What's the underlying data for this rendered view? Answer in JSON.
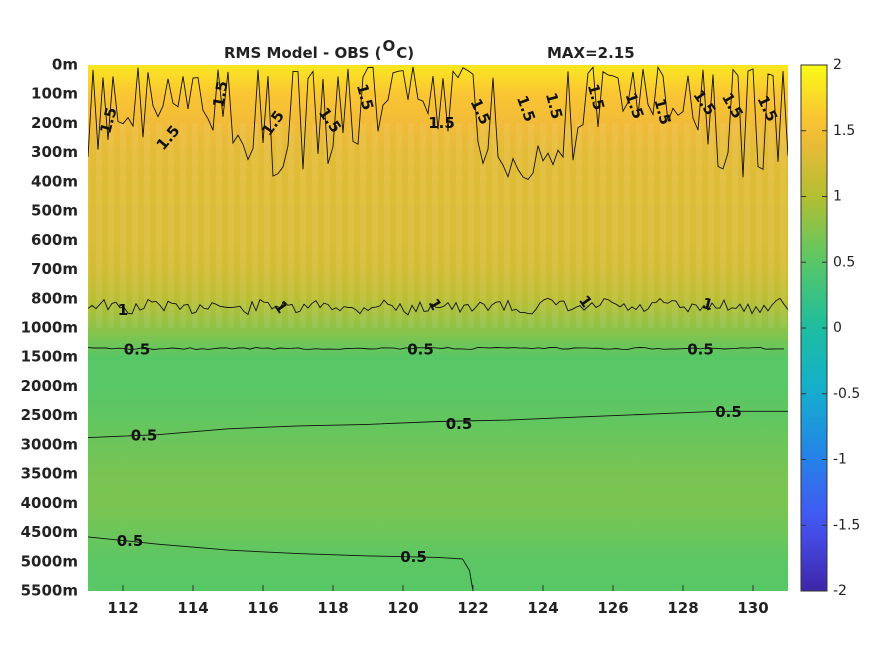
{
  "chart_data": {
    "type": "heatmap",
    "title": "RMS Model - OBS (",
    "title_unit_sup": "O",
    "title_unit_tail": "C)",
    "max_label": "MAX=2.15",
    "x_ticks": [
      {
        "value": 112,
        "label": "112"
      },
      {
        "value": 114,
        "label": "114"
      },
      {
        "value": 116,
        "label": "116"
      },
      {
        "value": 118,
        "label": "118"
      },
      {
        "value": 120,
        "label": "120"
      },
      {
        "value": 122,
        "label": "122"
      },
      {
        "value": 124,
        "label": "124"
      },
      {
        "value": 126,
        "label": "126"
      },
      {
        "value": 128,
        "label": "128"
      },
      {
        "value": 130,
        "label": "130"
      }
    ],
    "xlim": [
      111,
      131
    ],
    "y_levels": [
      "0m",
      "100m",
      "200m",
      "300m",
      "400m",
      "500m",
      "600m",
      "700m",
      "800m",
      "1000m",
      "1500m",
      "2000m",
      "2500m",
      "3000m",
      "3500m",
      "4000m",
      "4500m",
      "5000m",
      "5500m"
    ],
    "depth_profile": [
      {
        "level": "0m",
        "value": 1.85
      },
      {
        "level": "100m",
        "value": 1.6
      },
      {
        "level": "200m",
        "value": 1.45
      },
      {
        "level": "300m",
        "value": 1.35
      },
      {
        "level": "400m",
        "value": 1.32
      },
      {
        "level": "500m",
        "value": 1.3
      },
      {
        "level": "600m",
        "value": 1.28
      },
      {
        "level": "700m",
        "value": 1.22
      },
      {
        "level": "800m",
        "value": 1.05
      },
      {
        "level": "1000m",
        "value": 0.8
      },
      {
        "level": "1500m",
        "value": 0.5
      },
      {
        "level": "2000m",
        "value": 0.5
      },
      {
        "level": "2500m",
        "value": 0.55
      },
      {
        "level": "3000m",
        "value": 0.62
      },
      {
        "level": "3500m",
        "value": 0.68
      },
      {
        "level": "4000m",
        "value": 0.7
      },
      {
        "level": "4500m",
        "value": 0.62
      },
      {
        "level": "5000m",
        "value": 0.52
      },
      {
        "level": "5500m",
        "value": 0.5
      }
    ],
    "contour_labels": [
      {
        "text": "1.5",
        "x": 111.6,
        "level": 1.9,
        "rotate": -75
      },
      {
        "text": "1.5",
        "x": 113.3,
        "level": 2.5,
        "rotate": -50
      },
      {
        "text": "1.5",
        "x": 114.8,
        "level": 1.0,
        "rotate": -80
      },
      {
        "text": "1.5",
        "x": 116.3,
        "level": 2.0,
        "rotate": -55
      },
      {
        "text": "1.5",
        "x": 117.9,
        "level": 1.9,
        "rotate": 55
      },
      {
        "text": "1.5",
        "x": 118.9,
        "level": 1.1,
        "rotate": 75
      },
      {
        "text": "1.5",
        "x": 121.1,
        "level": 2.0,
        "rotate": 0
      },
      {
        "text": "1.5",
        "x": 122.2,
        "level": 1.6,
        "rotate": 65
      },
      {
        "text": "1.5",
        "x": 123.5,
        "level": 1.5,
        "rotate": 70
      },
      {
        "text": "1.5",
        "x": 124.3,
        "level": 1.4,
        "rotate": 75
      },
      {
        "text": "1.5",
        "x": 125.5,
        "level": 1.1,
        "rotate": 75
      },
      {
        "text": "1.5",
        "x": 126.6,
        "level": 1.4,
        "rotate": 70
      },
      {
        "text": "1.5",
        "x": 127.4,
        "level": 1.6,
        "rotate": 75
      },
      {
        "text": "1.5",
        "x": 128.6,
        "level": 1.3,
        "rotate": 55
      },
      {
        "text": "1.5",
        "x": 129.4,
        "level": 1.4,
        "rotate": 60
      },
      {
        "text": "1.5",
        "x": 130.4,
        "level": 1.5,
        "rotate": 65
      },
      {
        "text": "1",
        "x": 112.0,
        "level": 8.4,
        "rotate": 0
      },
      {
        "text": "1",
        "x": 116.5,
        "level": 8.3,
        "rotate": 55
      },
      {
        "text": "1",
        "x": 120.9,
        "level": 8.2,
        "rotate": 60
      },
      {
        "text": "1",
        "x": 125.2,
        "level": 8.1,
        "rotate": 55
      },
      {
        "text": "1",
        "x": 128.7,
        "level": 8.2,
        "rotate": 15
      },
      {
        "text": "0.5",
        "x": 112.4,
        "level": 9.75,
        "rotate": 0
      },
      {
        "text": "0.5",
        "x": 120.5,
        "level": 9.75,
        "rotate": 0
      },
      {
        "text": "0.5",
        "x": 128.5,
        "level": 9.75,
        "rotate": 0
      },
      {
        "text": "0.5",
        "x": 112.6,
        "level": 12.7,
        "rotate": 0
      },
      {
        "text": "0.5",
        "x": 121.6,
        "level": 12.3,
        "rotate": 0
      },
      {
        "text": "0.5",
        "x": 129.3,
        "level": 11.9,
        "rotate": 0
      },
      {
        "text": "0.5",
        "x": 112.2,
        "level": 16.3,
        "rotate": 0
      },
      {
        "text": "0.5",
        "x": 120.3,
        "level": 16.85,
        "rotate": 0
      }
    ],
    "colorbar": {
      "range": [
        -2,
        2
      ],
      "ticks": [
        "2",
        "1.5",
        "1",
        "0.5",
        "0",
        "-0.5",
        "-1",
        "-1.5",
        "-2"
      ],
      "colormap": "parula"
    }
  }
}
